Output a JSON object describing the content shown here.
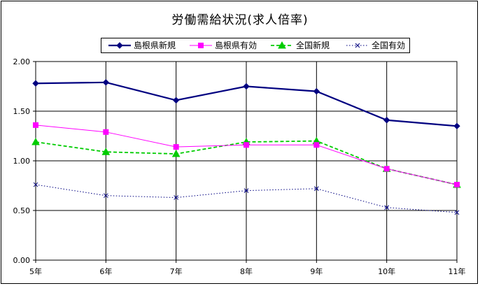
{
  "chart_data": {
    "type": "line",
    "title": "労働需給状況(求人倍率)",
    "categories": [
      "5年",
      "6年",
      "7年",
      "8年",
      "9年",
      "10年",
      "11年"
    ],
    "y_ticks": [
      "0.00",
      "0.50",
      "1.00",
      "1.50",
      "2.00"
    ],
    "ylim": [
      0,
      2.0
    ],
    "grid": true,
    "legend_position": "top",
    "series": [
      {
        "name": "島根県新規",
        "values": [
          1.78,
          1.79,
          1.61,
          1.75,
          1.7,
          1.41,
          1.35
        ],
        "color": "#000080",
        "marker": "diamond",
        "line": "solid-thick"
      },
      {
        "name": "島根県有効",
        "values": [
          1.36,
          1.29,
          1.14,
          1.16,
          1.16,
          0.92,
          0.76
        ],
        "color": "#ff00ff",
        "marker": "square",
        "line": "solid-thin"
      },
      {
        "name": "全国新規",
        "values": [
          1.19,
          1.09,
          1.07,
          1.19,
          1.2,
          0.92,
          0.76
        ],
        "color": "#00cc00",
        "marker": "triangle",
        "line": "dashed"
      },
      {
        "name": "全国有効",
        "values": [
          0.76,
          0.65,
          0.63,
          0.7,
          0.72,
          0.53,
          0.48
        ],
        "color": "#000080",
        "marker": "x",
        "line": "dotted"
      }
    ]
  }
}
